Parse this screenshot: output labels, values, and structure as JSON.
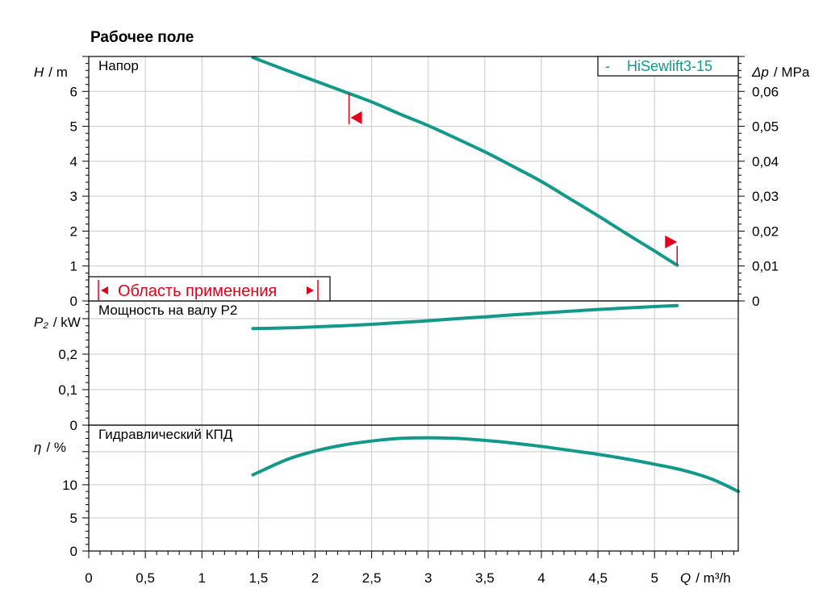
{
  "page": {
    "title": "Рабочее поле"
  },
  "colors": {
    "curve": "#13998a",
    "marker": "#e3001b",
    "grid": "#c9c9c9",
    "axis": "#000000"
  },
  "chart_data": [
    {
      "id": "head",
      "type": "line",
      "title": "Напор",
      "ylabel": "H / m",
      "ylabel_var": "H",
      "ylabel_unit": "/ m",
      "y2label": "Δp / MPa",
      "y2label_var": "Δp",
      "y2label_unit": "/ MPa",
      "xlabel": "Q / m³/h",
      "xlabel_var": "Q",
      "xlabel_unit": "/ m³/h",
      "xlim": [
        0,
        5.74
      ],
      "ylim": [
        0,
        7
      ],
      "y_ticks": [
        0,
        1,
        2,
        3,
        4,
        5,
        6
      ],
      "y_tick_labels": [
        "0",
        "1",
        "2",
        "3",
        "4",
        "5",
        "6"
      ],
      "y2_ticks": [
        0,
        0.01,
        0.02,
        0.03,
        0.04,
        0.05,
        0.06
      ],
      "y2_tick_labels": [
        "0",
        "0,01",
        "0,02",
        "0,03",
        "0,04",
        "0,05",
        "0,06"
      ],
      "x_ticks": [
        0,
        0.5,
        1,
        1.5,
        2,
        2.5,
        3,
        3.5,
        4,
        4.5,
        5
      ],
      "x_tick_labels": [
        "0",
        "0,5",
        "1",
        "1,5",
        "2",
        "2,5",
        "3",
        "3,5",
        "4",
        "4,5",
        "5"
      ],
      "grid": true,
      "series": [
        {
          "name": "HiSewlift3-15",
          "x": [
            1.45,
            1.75,
            2.0,
            2.25,
            2.5,
            2.75,
            3.0,
            3.25,
            3.5,
            3.75,
            4.0,
            4.25,
            4.5,
            4.75,
            5.0,
            5.2
          ],
          "y": [
            6.97,
            6.6,
            6.3,
            6.0,
            5.7,
            5.35,
            5.02,
            4.65,
            4.27,
            3.85,
            3.42,
            2.93,
            2.44,
            1.93,
            1.43,
            1.02
          ]
        }
      ],
      "legend": {
        "position": "top-right",
        "label": "HiSewlift3-15",
        "dash": "-"
      },
      "application_range": {
        "label": "Область применения",
        "x_start": 2.3,
        "x_end": 5.2
      }
    },
    {
      "id": "power",
      "type": "line",
      "title": "Мощность на валу P2",
      "ylabel": "P₂ / kW",
      "ylabel_var": "P₂",
      "ylabel_unit": "/ kW",
      "xlim": [
        0,
        5.74
      ],
      "ylim": [
        0,
        0.35
      ],
      "y_ticks": [
        0,
        0.1,
        0.2
      ],
      "y_tick_labels": [
        "0",
        "0,1",
        "0,2"
      ],
      "grid": true,
      "series": [
        {
          "name": "HiSewlift3-15",
          "x": [
            1.45,
            1.75,
            2.0,
            2.25,
            2.5,
            2.75,
            3.0,
            3.25,
            3.5,
            3.75,
            4.0,
            4.25,
            4.5,
            4.75,
            5.0,
            5.2
          ],
          "y": [
            0.272,
            0.274,
            0.277,
            0.28,
            0.284,
            0.289,
            0.294,
            0.3,
            0.305,
            0.311,
            0.316,
            0.321,
            0.326,
            0.33,
            0.334,
            0.337
          ]
        }
      ]
    },
    {
      "id": "efficiency",
      "type": "line",
      "title": "Гидравлический КПД",
      "ylabel": "η / %",
      "ylabel_var": "η",
      "ylabel_unit": "/ %",
      "xlim": [
        0,
        5.74
      ],
      "ylim": [
        0,
        19
      ],
      "y_ticks": [
        0,
        5,
        10
      ],
      "y_tick_labels": [
        "0",
        "5",
        "10"
      ],
      "grid": true,
      "series": [
        {
          "name": "HiSewlift3-15",
          "x": [
            1.45,
            1.75,
            2.0,
            2.25,
            2.5,
            2.75,
            3.0,
            3.25,
            3.5,
            3.75,
            4.0,
            4.25,
            4.5,
            4.75,
            5.0,
            5.25,
            5.5,
            5.74
          ],
          "y": [
            11.5,
            13.8,
            15.1,
            16.0,
            16.6,
            17.0,
            17.1,
            17.0,
            16.7,
            16.3,
            15.8,
            15.2,
            14.6,
            13.9,
            13.1,
            12.2,
            10.9,
            9.0
          ]
        }
      ]
    }
  ]
}
